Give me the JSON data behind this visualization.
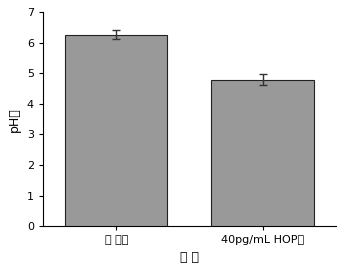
{
  "categories": [
    "空白样",
    "40pg/mL HOP样"
  ],
  "xtick_labels": [
    "空 白样",
    "40pg/mL HOP样"
  ],
  "values": [
    6.27,
    4.8
  ],
  "errors": [
    0.15,
    0.18
  ],
  "bar_color": "#999999",
  "bar_width": 0.35,
  "ylim": [
    0,
    7
  ],
  "yticks": [
    0,
    1,
    2,
    3,
    4,
    5,
    6,
    7
  ],
  "ylabel": "pH値",
  "xlabel": "样 品",
  "title": "",
  "figsize": [
    3.44,
    2.72
  ],
  "dpi": 100,
  "bg_color": "#ffffff",
  "error_capsize": 3,
  "error_color": "#333333",
  "tick_fontsize": 8,
  "label_fontsize": 9,
  "spine_color": "#000000",
  "xtick_positions": [
    0.3,
    0.8
  ]
}
